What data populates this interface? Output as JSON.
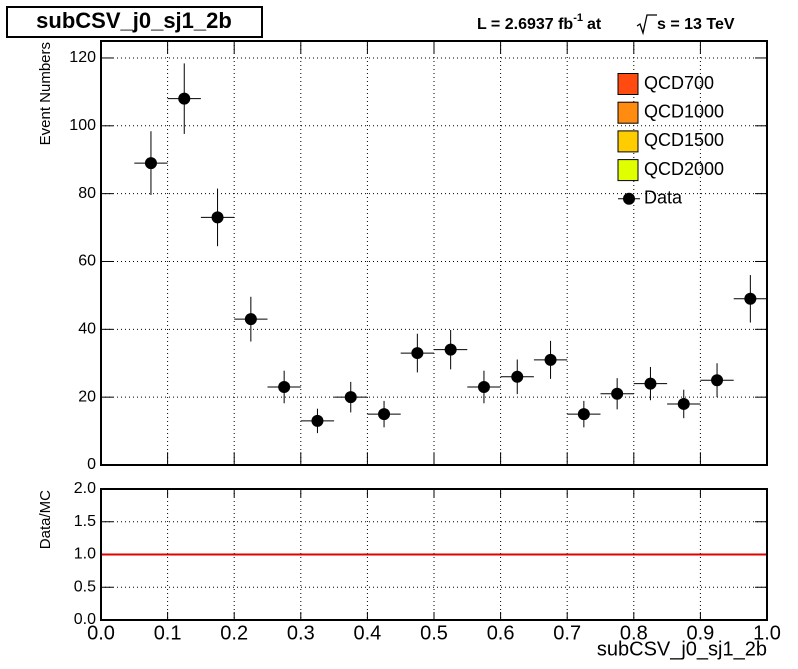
{
  "chart_data": [
    {
      "type": "scatter",
      "title": "subCSV_j0_sj1_2b",
      "annotation": [
        "L = 2.6937 fb",
        "-1",
        "at",
        "s = 13 TeV"
      ],
      "y_label": "Event Numbers",
      "xlim": [
        0,
        1
      ],
      "ylim": [
        0,
        125
      ],
      "xticks": [
        0,
        0.1,
        0.2,
        0.3,
        0.4,
        0.5,
        0.6,
        0.7,
        0.8,
        0.9,
        1
      ],
      "yticks": [
        0,
        20,
        40,
        60,
        80,
        100,
        120
      ],
      "grid": true,
      "series": [
        {
          "name": "QCD700",
          "color": "#ff4a10"
        },
        {
          "name": "QCD1000",
          "color": "#ff8c10"
        },
        {
          "name": "QCD1500",
          "color": "#ffcc00"
        },
        {
          "name": "QCD2000",
          "color": "#e0ff00"
        },
        {
          "name": "Data",
          "color": "#000000",
          "x": [
            0.075,
            0.125,
            0.175,
            0.225,
            0.275,
            0.325,
            0.375,
            0.425,
            0.475,
            0.525,
            0.575,
            0.625,
            0.675,
            0.725,
            0.775,
            0.825,
            0.875,
            0.925,
            0.975
          ],
          "values": [
            89,
            108,
            73,
            43,
            23,
            13,
            20,
            15,
            33,
            34,
            23,
            26,
            31,
            15,
            21,
            24,
            18,
            25,
            49
          ],
          "errors": [
            9.4,
            10.4,
            8.5,
            6.6,
            4.8,
            3.6,
            4.5,
            3.9,
            5.7,
            5.8,
            4.8,
            5.1,
            5.6,
            3.9,
            4.6,
            4.9,
            4.2,
            5,
            7
          ]
        }
      ]
    },
    {
      "type": "ratio",
      "y_label": "Data/MC",
      "x_label": "subCSV_j0_sj1_2b",
      "xlim": [
        0,
        1
      ],
      "ylim": [
        0,
        2
      ],
      "xticks": [
        {
          "value": 0,
          "label": "0.0"
        },
        {
          "value": 0.1,
          "label": "0.1"
        },
        {
          "value": 0.2,
          "label": "0.2"
        },
        {
          "value": 0.3,
          "label": "0.3"
        },
        {
          "value": 0.4,
          "label": "0.4"
        },
        {
          "value": 0.5,
          "label": "0.5"
        },
        {
          "value": 0.6,
          "label": "0.6"
        },
        {
          "value": 0.7,
          "label": "0.7"
        },
        {
          "value": 0.8,
          "label": "0.8"
        },
        {
          "value": 0.9,
          "label": "0.9"
        },
        {
          "value": 1,
          "label": "1.0"
        }
      ],
      "yticks": [
        {
          "value": 0,
          "label": "0.0"
        },
        {
          "value": 0.5,
          "label": "0.5"
        },
        {
          "value": 1,
          "label": "1.0"
        },
        {
          "value": 1.5,
          "label": "1.5"
        },
        {
          "value": 2,
          "label": "2.0"
        }
      ],
      "grid": true,
      "reference_line": {
        "value": 1,
        "color": "#e00000"
      }
    }
  ]
}
